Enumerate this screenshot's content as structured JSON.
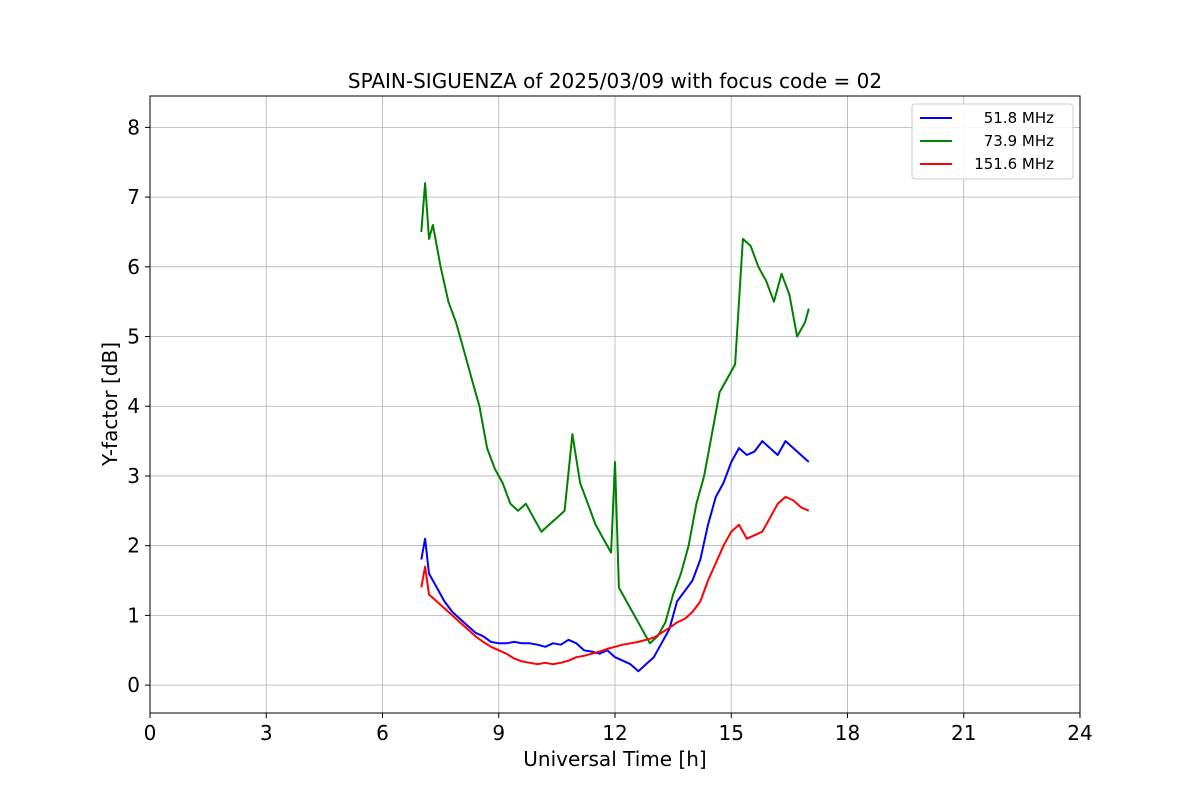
{
  "chart_data": {
    "type": "line",
    "title": "SPAIN-SIGUENZA of 2025/03/09 with focus code = 02",
    "xlabel": "Universal Time [h]",
    "ylabel": "Y-factor [dB]",
    "xlim": [
      0,
      24
    ],
    "ylim": [
      -0.4,
      8.45
    ],
    "xticks": [
      0,
      3,
      6,
      9,
      12,
      15,
      18,
      21,
      24
    ],
    "yticks": [
      0,
      1,
      2,
      3,
      4,
      5,
      6,
      7,
      8
    ],
    "grid": true,
    "legend_position": "top-right",
    "series": [
      {
        "name": "51.8 MHz",
        "color": "#0000ff",
        "x": [
          7.0,
          7.1,
          7.2,
          7.4,
          7.6,
          7.8,
          8.0,
          8.2,
          8.4,
          8.6,
          8.8,
          9.0,
          9.2,
          9.4,
          9.6,
          9.8,
          10.0,
          10.2,
          10.4,
          10.6,
          10.8,
          11.0,
          11.2,
          11.4,
          11.6,
          11.8,
          12.0,
          12.2,
          12.4,
          12.6,
          12.8,
          13.0,
          13.2,
          13.4,
          13.6,
          13.8,
          14.0,
          14.2,
          14.4,
          14.6,
          14.8,
          15.0,
          15.2,
          15.4,
          15.6,
          15.8,
          16.0,
          16.2,
          16.4,
          16.6,
          16.8,
          17.0
        ],
        "values": [
          1.8,
          2.1,
          1.6,
          1.4,
          1.2,
          1.05,
          0.95,
          0.85,
          0.75,
          0.7,
          0.62,
          0.6,
          0.6,
          0.62,
          0.6,
          0.6,
          0.58,
          0.55,
          0.6,
          0.58,
          0.65,
          0.6,
          0.5,
          0.48,
          0.45,
          0.5,
          0.4,
          0.35,
          0.3,
          0.2,
          0.3,
          0.4,
          0.6,
          0.8,
          1.2,
          1.35,
          1.5,
          1.8,
          2.3,
          2.7,
          2.9,
          3.2,
          3.4,
          3.3,
          3.35,
          3.5,
          3.4,
          3.3,
          3.5,
          3.4,
          3.3,
          3.2
        ]
      },
      {
        "name": "73.9 MHz",
        "color": "#008000",
        "x": [
          7.0,
          7.1,
          7.2,
          7.3,
          7.5,
          7.7,
          7.9,
          8.1,
          8.3,
          8.5,
          8.7,
          8.9,
          9.1,
          9.3,
          9.5,
          9.7,
          9.9,
          10.1,
          10.3,
          10.5,
          10.7,
          10.9,
          11.1,
          11.3,
          11.5,
          11.7,
          11.9,
          12.0,
          12.1,
          12.3,
          12.5,
          12.7,
          12.9,
          13.1,
          13.3,
          13.5,
          13.7,
          13.9,
          14.1,
          14.3,
          14.5,
          14.7,
          14.9,
          15.1,
          15.3,
          15.5,
          15.7,
          15.9,
          16.1,
          16.3,
          16.5,
          16.7,
          16.9,
          17.0
        ],
        "values": [
          6.5,
          7.2,
          6.4,
          6.6,
          6.0,
          5.5,
          5.2,
          4.8,
          4.4,
          4.0,
          3.4,
          3.1,
          2.9,
          2.6,
          2.5,
          2.6,
          2.4,
          2.2,
          2.3,
          2.4,
          2.5,
          3.6,
          2.9,
          2.6,
          2.3,
          2.1,
          1.9,
          3.2,
          1.4,
          1.2,
          1.0,
          0.8,
          0.6,
          0.7,
          0.9,
          1.3,
          1.6,
          2.0,
          2.6,
          3.0,
          3.6,
          4.2,
          4.4,
          4.6,
          6.4,
          6.3,
          6.0,
          5.8,
          5.5,
          5.9,
          5.6,
          5.0,
          5.2,
          5.4
        ]
      },
      {
        "name": "151.6 MHz",
        "color": "#ff0000",
        "x": [
          7.0,
          7.1,
          7.2,
          7.4,
          7.6,
          7.8,
          8.0,
          8.2,
          8.4,
          8.6,
          8.8,
          9.0,
          9.2,
          9.4,
          9.6,
          9.8,
          10.0,
          10.2,
          10.4,
          10.6,
          10.8,
          11.0,
          11.2,
          11.4,
          11.6,
          11.8,
          12.0,
          12.2,
          12.4,
          12.6,
          12.8,
          13.0,
          13.2,
          13.4,
          13.6,
          13.8,
          14.0,
          14.2,
          14.4,
          14.6,
          14.8,
          15.0,
          15.2,
          15.4,
          15.6,
          15.8,
          16.0,
          16.2,
          16.4,
          16.6,
          16.8,
          17.0
        ],
        "values": [
          1.4,
          1.7,
          1.3,
          1.2,
          1.1,
          1.0,
          0.9,
          0.8,
          0.7,
          0.62,
          0.55,
          0.5,
          0.45,
          0.38,
          0.34,
          0.32,
          0.3,
          0.32,
          0.3,
          0.32,
          0.35,
          0.4,
          0.42,
          0.45,
          0.48,
          0.52,
          0.55,
          0.58,
          0.6,
          0.62,
          0.65,
          0.68,
          0.75,
          0.82,
          0.9,
          0.95,
          1.05,
          1.2,
          1.5,
          1.75,
          2.0,
          2.2,
          2.3,
          2.1,
          2.15,
          2.2,
          2.4,
          2.6,
          2.7,
          2.65,
          2.55,
          2.5
        ]
      }
    ]
  }
}
